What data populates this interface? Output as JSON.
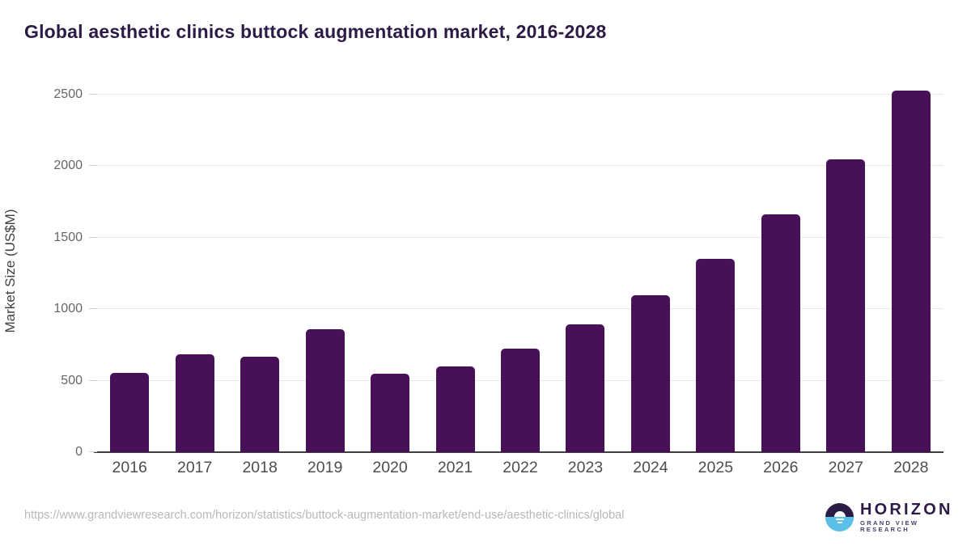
{
  "title": "Global aesthetic clinics buttock augmentation market, 2016-2028",
  "chart_data": {
    "type": "bar",
    "categories": [
      "2016",
      "2017",
      "2018",
      "2019",
      "2020",
      "2021",
      "2022",
      "2023",
      "2024",
      "2025",
      "2026",
      "2027",
      "2028"
    ],
    "values": [
      555,
      685,
      665,
      860,
      550,
      600,
      725,
      895,
      1100,
      1350,
      1665,
      2045,
      2530
    ],
    "title": "Global aesthetic clinics buttock augmentation market, 2016-2028",
    "xlabel": "",
    "ylabel": "Market Size (US$M)",
    "ylim": [
      0,
      2500
    ],
    "yticks": [
      0,
      500,
      1000,
      1500,
      2000,
      2500
    ],
    "grid": true,
    "legend_position": "none",
    "bar_color": "#481057"
  },
  "colors": {
    "title": "#2e1a47",
    "bar": "#481057",
    "gridline": "#e8e8e8",
    "axis_line": "#3d3d3d",
    "tick_label": "#666666",
    "x_label": "#4d4d4d",
    "url_text": "#b8b8b8",
    "logo_purple": "#2b1b45",
    "logo_blue": "#5ac0e8"
  },
  "footer": {
    "source_url": "https://www.grandviewresearch.com/horizon/statistics/buttock-augmentation-market/end-use/aesthetic-clinics/global",
    "logo_name": "HORIZON",
    "logo_subtitle": "GRAND VIEW RESEARCH"
  }
}
